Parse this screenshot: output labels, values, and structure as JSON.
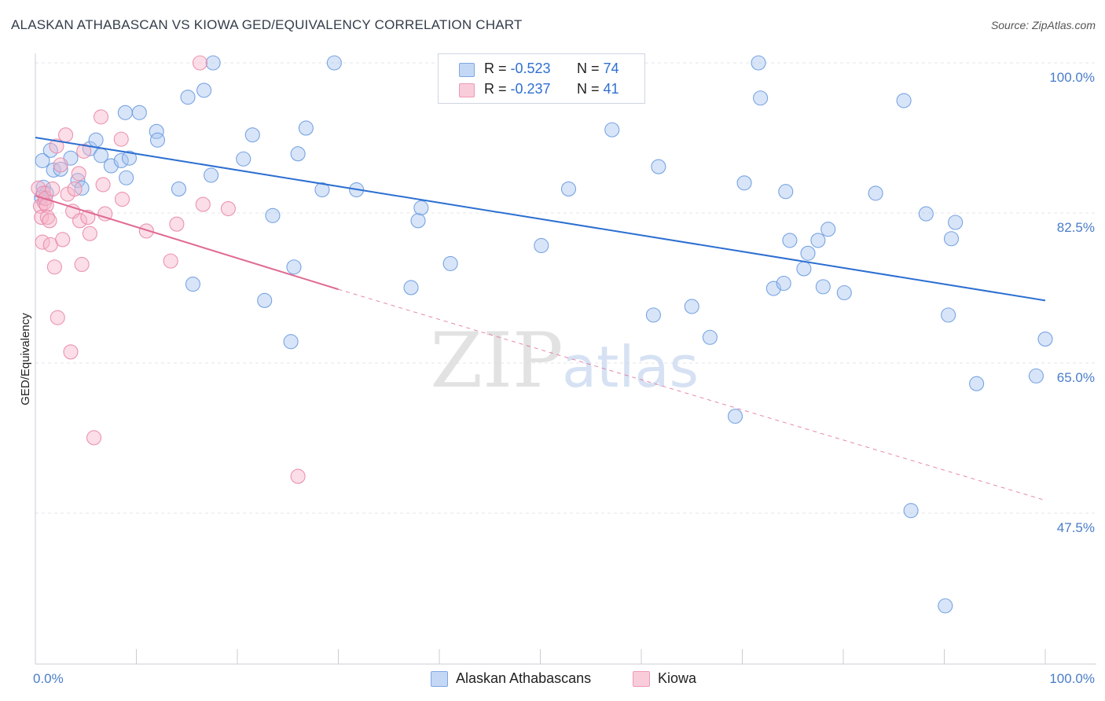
{
  "header": {
    "title": "ALASKAN ATHABASCAN VS KIOWA GED/EQUIVALENCY CORRELATION CHART",
    "source": "Source: ZipAtlas.com"
  },
  "watermark": {
    "zip": "ZIP",
    "atlas": "atlas"
  },
  "legend": {
    "series": [
      {
        "r_label": "R = ",
        "r_value": "-0.523",
        "n_label": "N = ",
        "n_value": "74",
        "color": "#a9c6f0"
      },
      {
        "r_label": "R = ",
        "r_value": "-0.237",
        "n_label": "N = ",
        "n_value": "41",
        "color": "#f6b6ca"
      }
    ]
  },
  "chart_data": {
    "type": "scatter",
    "title": "ALASKAN ATHABASCAN VS KIOWA GED/EQUIVALENCY CORRELATION CHART",
    "xlabel": "",
    "ylabel": "GED/Equivalency",
    "xlim": [
      0,
      100
    ],
    "ylim": [
      35,
      100
    ],
    "x_tick_labels": [
      "0.0%",
      "100.0%"
    ],
    "y_ticks": [
      47.5,
      65.0,
      82.5,
      100.0
    ],
    "y_tick_labels": [
      "47.5%",
      "65.0%",
      "82.5%",
      "100.0%"
    ],
    "grid": "horizontal dashed",
    "legend_placement": "top-center",
    "series": [
      {
        "name": "Alaskan Athabascans",
        "color": "#6b9be0",
        "fill": "#a9c6f0",
        "trend": {
          "x": [
            0,
            100
          ],
          "y": [
            91.3,
            72.3
          ],
          "style": "solid",
          "color": "#2c6fd1"
        },
        "points": [
          [
            0.7,
            88.6
          ],
          [
            1.5,
            89.8
          ],
          [
            1.8,
            87.5
          ],
          [
            2.5,
            87.6
          ],
          [
            3.5,
            88.9
          ],
          [
            4.2,
            86.3
          ],
          [
            4.6,
            85.4
          ],
          [
            5.4,
            90.0
          ],
          [
            6.0,
            91.0
          ],
          [
            6.5,
            89.2
          ],
          [
            7.5,
            88.0
          ],
          [
            8.5,
            88.6
          ],
          [
            8.9,
            94.2
          ],
          [
            9.0,
            86.6
          ],
          [
            9.3,
            88.9
          ],
          [
            10.3,
            94.2
          ],
          [
            12.0,
            92.0
          ],
          [
            12.1,
            91.0
          ],
          [
            14.2,
            85.3
          ],
          [
            15.1,
            96.0
          ],
          [
            15.6,
            74.2
          ],
          [
            16.7,
            96.8
          ],
          [
            17.4,
            86.9
          ],
          [
            17.6,
            100.0
          ],
          [
            20.6,
            88.8
          ],
          [
            21.5,
            91.6
          ],
          [
            22.7,
            72.3
          ],
          [
            23.5,
            82.2
          ],
          [
            25.3,
            67.5
          ],
          [
            25.6,
            76.2
          ],
          [
            26.0,
            89.4
          ],
          [
            26.8,
            92.4
          ],
          [
            28.4,
            85.2
          ],
          [
            29.6,
            100.0
          ],
          [
            31.8,
            85.2
          ],
          [
            37.2,
            73.8
          ],
          [
            37.9,
            81.6
          ],
          [
            38.2,
            83.1
          ],
          [
            41.1,
            76.6
          ],
          [
            50.1,
            78.7
          ],
          [
            52.8,
            85.3
          ],
          [
            57.1,
            92.2
          ],
          [
            61.2,
            70.6
          ],
          [
            61.7,
            87.9
          ],
          [
            65.0,
            71.6
          ],
          [
            66.8,
            68.0
          ],
          [
            69.3,
            58.8
          ],
          [
            70.2,
            86.0
          ],
          [
            71.6,
            100.0
          ],
          [
            71.8,
            95.9
          ],
          [
            73.1,
            73.7
          ],
          [
            74.1,
            74.3
          ],
          [
            74.3,
            85.0
          ],
          [
            74.7,
            79.3
          ],
          [
            76.1,
            76.0
          ],
          [
            76.5,
            77.8
          ],
          [
            77.5,
            79.3
          ],
          [
            78.0,
            73.9
          ],
          [
            78.5,
            80.6
          ],
          [
            80.1,
            73.2
          ],
          [
            83.2,
            84.8
          ],
          [
            86.0,
            95.6
          ],
          [
            86.7,
            47.8
          ],
          [
            88.2,
            82.4
          ],
          [
            90.1,
            36.7
          ],
          [
            90.4,
            70.6
          ],
          [
            90.7,
            79.5
          ],
          [
            91.1,
            81.4
          ],
          [
            93.2,
            62.6
          ],
          [
            99.1,
            63.5
          ],
          [
            100.0,
            67.8
          ],
          [
            0.8,
            85.5
          ],
          [
            1.1,
            84.8
          ],
          [
            0.6,
            84.3
          ]
        ]
      },
      {
        "name": "Kiowa",
        "color": "#e98aa8",
        "fill": "#f6b6ca",
        "trend": {
          "x": [
            0,
            30
          ],
          "y": [
            84.5,
            73.6
          ],
          "style": "solid",
          "color": "#e06a92",
          "extension": {
            "x": [
              30,
              100
            ],
            "y": [
              73.6,
              49.0
            ],
            "style": "dashed"
          }
        },
        "points": [
          [
            0.3,
            85.4
          ],
          [
            0.5,
            83.3
          ],
          [
            0.6,
            82.0
          ],
          [
            0.7,
            79.1
          ],
          [
            0.8,
            84.8
          ],
          [
            0.9,
            83.7
          ],
          [
            1.0,
            84.2
          ],
          [
            1.1,
            83.4
          ],
          [
            1.2,
            82.0
          ],
          [
            1.4,
            81.6
          ],
          [
            1.5,
            78.8
          ],
          [
            1.7,
            85.3
          ],
          [
            1.9,
            76.2
          ],
          [
            2.1,
            90.3
          ],
          [
            2.2,
            70.3
          ],
          [
            2.5,
            88.1
          ],
          [
            2.7,
            79.4
          ],
          [
            3.0,
            91.6
          ],
          [
            3.2,
            84.7
          ],
          [
            3.5,
            66.3
          ],
          [
            3.7,
            82.7
          ],
          [
            3.9,
            85.3
          ],
          [
            4.3,
            87.1
          ],
          [
            4.4,
            81.6
          ],
          [
            4.6,
            76.5
          ],
          [
            4.8,
            89.7
          ],
          [
            5.2,
            82.0
          ],
          [
            5.4,
            80.1
          ],
          [
            5.8,
            56.3
          ],
          [
            6.5,
            93.7
          ],
          [
            6.7,
            85.8
          ],
          [
            6.9,
            82.4
          ],
          [
            8.5,
            91.1
          ],
          [
            8.6,
            84.1
          ],
          [
            11.0,
            80.4
          ],
          [
            13.4,
            76.9
          ],
          [
            14.0,
            81.2
          ],
          [
            16.3,
            100.0
          ],
          [
            16.6,
            83.5
          ],
          [
            19.1,
            83.0
          ],
          [
            26.0,
            51.8
          ]
        ]
      }
    ]
  },
  "bottom_legend": {
    "items": [
      {
        "label": "Alaskan Athabascans",
        "color": "#a9c6f0"
      },
      {
        "label": "Kiowa",
        "color": "#f6b6ca"
      }
    ]
  }
}
